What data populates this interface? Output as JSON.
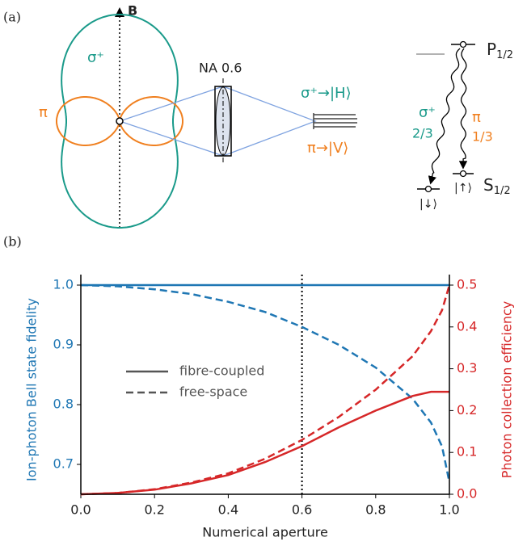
{
  "panel_a": {
    "tag": "(a)",
    "axis_label": "B",
    "sigma_label": "σ⁺",
    "pi_label": "π",
    "lens_label": "NA 0.6",
    "sigma_map": "σ⁺→|H⟩",
    "pi_map": "π→|V⟩",
    "upper_level": {
      "label": "P",
      "sub": "1/2"
    },
    "lower_level": {
      "label": "S",
      "sub": "1/2"
    },
    "sigma_transition": "σ⁺",
    "sigma_ratio": "2/3",
    "pi_transition": "π",
    "pi_ratio": "1/3",
    "state_down": "|↓⟩",
    "state_up": "|↑⟩"
  },
  "chart_data": {
    "type": "line",
    "tag": "(b)",
    "xlabel": "Numerical aperture",
    "ylabel": "Ion-photon Bell state fidelity",
    "y2label": "Photon collection efficiency",
    "x": [
      0,
      0.1,
      0.2,
      0.3,
      0.4,
      0.5,
      0.6,
      0.7,
      0.8,
      0.9,
      0.95,
      0.98,
      1.0
    ],
    "legend": [
      "fibre-coupled",
      "free-space"
    ],
    "series": [
      {
        "color": "#1f77b4",
        "style": "solid",
        "axis": "y",
        "values": [
          1,
          1,
          1,
          1,
          1,
          1,
          1,
          1,
          1,
          1,
          1,
          1,
          1
        ]
      },
      {
        "color": "#1f77b4",
        "style": "dashed",
        "axis": "y",
        "values": [
          1,
          0.998,
          0.993,
          0.985,
          0.972,
          0.955,
          0.93,
          0.9,
          0.862,
          0.81,
          0.77,
          0.73,
          0.67
        ]
      },
      {
        "color": "#d62728",
        "style": "solid",
        "axis": "y2",
        "values": [
          0,
          0.003,
          0.011,
          0.026,
          0.046,
          0.077,
          0.115,
          0.16,
          0.2,
          0.235,
          0.245,
          0.245,
          0.245
        ]
      },
      {
        "color": "#d62728",
        "style": "dashed",
        "axis": "y2",
        "values": [
          0,
          0.003,
          0.012,
          0.028,
          0.05,
          0.085,
          0.13,
          0.185,
          0.25,
          0.33,
          0.39,
          0.44,
          0.5
        ]
      }
    ],
    "xlim": [
      0,
      1
    ],
    "xticks": [
      {
        "value": 0,
        "label": "0.0"
      },
      0.2,
      0.4,
      0.6,
      0.8,
      {
        "value": 1,
        "label": "1.0"
      }
    ],
    "ylim": [
      0.65,
      1.0
    ],
    "yticks": [
      0.7,
      0.8,
      0.9,
      {
        "value": 1,
        "label": "1.0"
      }
    ],
    "ycolor": "#1f77b4",
    "y2lim": [
      0,
      0.5
    ],
    "y2ticks": [
      {
        "value": 0,
        "label": "0.0"
      },
      0.1,
      0.2,
      0.3,
      0.4,
      0.5
    ],
    "y2color": "#d62728",
    "vline": 0.6
  }
}
